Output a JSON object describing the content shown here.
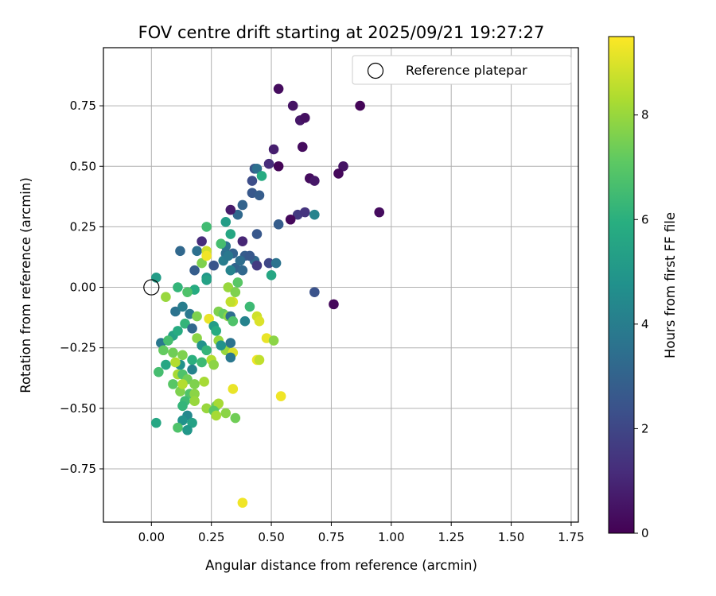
{
  "chart_data": {
    "type": "scatter",
    "title": "FOV centre drift starting at 2025/09/21 19:27:27",
    "xlabel": "Angular distance from reference (arcmin)",
    "ylabel": "Rotation from reference (arcmin)",
    "xlim": [
      -0.2,
      1.78
    ],
    "ylim": [
      -0.97,
      0.99
    ],
    "xticks": [
      0.0,
      0.25,
      0.5,
      0.75,
      1.0,
      1.25,
      1.5,
      1.75
    ],
    "xtick_labels": [
      "0.00",
      "0.25",
      "0.50",
      "0.75",
      "1.00",
      "1.25",
      "1.50",
      "1.75"
    ],
    "yticks": [
      -0.75,
      -0.5,
      -0.25,
      0.0,
      0.25,
      0.5,
      0.75
    ],
    "ytick_labels": [
      "−0.75",
      "−0.50",
      "−0.25",
      "0.00",
      "0.25",
      "0.50",
      "0.75"
    ],
    "grid": true,
    "legend": {
      "position": "top-right",
      "entries": [
        "Reference platepar"
      ]
    },
    "reference_point": {
      "x": 0.0,
      "y": 0.0,
      "label": "Reference platepar"
    },
    "colorbar": {
      "label": "Hours from first FF file",
      "range": [
        0,
        9.5
      ],
      "ticks": [
        0,
        2,
        4,
        6,
        8
      ],
      "tick_labels": [
        "0",
        "2",
        "4",
        "6",
        "8"
      ],
      "colormap": "viridis"
    },
    "points": [
      [
        0.53,
        0.82,
        0.3
      ],
      [
        0.59,
        0.75,
        0.5
      ],
      [
        0.87,
        0.75,
        0.1
      ],
      [
        0.62,
        0.69,
        0.6
      ],
      [
        0.64,
        0.7,
        0.4
      ],
      [
        0.51,
        0.57,
        0.8
      ],
      [
        0.63,
        0.58,
        0.3
      ],
      [
        0.49,
        0.51,
        1.2
      ],
      [
        0.53,
        0.5,
        0.1
      ],
      [
        0.8,
        0.5,
        0.5
      ],
      [
        0.78,
        0.47,
        0.2
      ],
      [
        0.66,
        0.45,
        0.3
      ],
      [
        0.68,
        0.44,
        0.6
      ],
      [
        0.43,
        0.49,
        2.5
      ],
      [
        0.44,
        0.49,
        3.5
      ],
      [
        0.46,
        0.46,
        5.8
      ],
      [
        0.42,
        0.44,
        2.2
      ],
      [
        0.42,
        0.39,
        2.6
      ],
      [
        0.45,
        0.38,
        2.8
      ],
      [
        0.38,
        0.34,
        3.0
      ],
      [
        0.36,
        0.3,
        3.2
      ],
      [
        0.33,
        0.32,
        0.7
      ],
      [
        0.61,
        0.3,
        1.6
      ],
      [
        0.64,
        0.31,
        1.4
      ],
      [
        0.58,
        0.28,
        0.2
      ],
      [
        0.68,
        0.3,
        4.2
      ],
      [
        0.95,
        0.31,
        0.3
      ],
      [
        0.53,
        0.26,
        2.8
      ],
      [
        0.31,
        0.27,
        5.2
      ],
      [
        0.23,
        0.25,
        6.5
      ],
      [
        0.33,
        0.22,
        5.6
      ],
      [
        0.44,
        0.22,
        2.6
      ],
      [
        0.21,
        0.19,
        1.2
      ],
      [
        0.38,
        0.19,
        1.0
      ],
      [
        0.12,
        0.15,
        3.2
      ],
      [
        0.19,
        0.15,
        3.5
      ],
      [
        0.23,
        0.15,
        8.8
      ],
      [
        0.31,
        0.14,
        3.4
      ],
      [
        0.34,
        0.14,
        3.0
      ],
      [
        0.39,
        0.13,
        2.8
      ],
      [
        0.43,
        0.11,
        3.2
      ],
      [
        0.49,
        0.1,
        2.0
      ],
      [
        0.52,
        0.1,
        3.6
      ],
      [
        0.3,
        0.11,
        4.0
      ],
      [
        0.26,
        0.09,
        2.5
      ],
      [
        0.35,
        0.08,
        3.0
      ],
      [
        0.33,
        0.07,
        4.2
      ],
      [
        0.18,
        0.07,
        2.8
      ],
      [
        0.38,
        0.07,
        3.2
      ],
      [
        0.5,
        0.05,
        5.6
      ],
      [
        0.44,
        0.09,
        1.6
      ],
      [
        0.23,
        0.04,
        5.0
      ],
      [
        0.23,
        0.03,
        5.4
      ],
      [
        0.21,
        0.1,
        7.6
      ],
      [
        0.23,
        0.13,
        9.3
      ],
      [
        0.02,
        0.04,
        5.2
      ],
      [
        0.11,
        0.0,
        6.2
      ],
      [
        0.18,
        -0.01,
        5.8
      ],
      [
        0.36,
        0.02,
        7.0
      ],
      [
        0.32,
        0.0,
        8.0
      ],
      [
        0.35,
        -0.02,
        7.6
      ],
      [
        0.06,
        -0.04,
        8.0
      ],
      [
        0.15,
        -0.02,
        6.8
      ],
      [
        0.34,
        -0.06,
        9.0
      ],
      [
        0.33,
        -0.06,
        8.6
      ],
      [
        0.41,
        -0.08,
        6.4
      ],
      [
        0.1,
        -0.1,
        3.6
      ],
      [
        0.13,
        -0.08,
        4.0
      ],
      [
        0.16,
        -0.11,
        3.8
      ],
      [
        0.19,
        -0.12,
        7.6
      ],
      [
        0.24,
        -0.13,
        9.2
      ],
      [
        0.28,
        -0.1,
        7.6
      ],
      [
        0.3,
        -0.11,
        7.2
      ],
      [
        0.32,
        -0.12,
        7.8
      ],
      [
        0.33,
        -0.12,
        3.4
      ],
      [
        0.34,
        -0.14,
        6.8
      ],
      [
        0.39,
        -0.14,
        4.2
      ],
      [
        0.44,
        -0.12,
        8.8
      ],
      [
        0.45,
        -0.14,
        9.0
      ],
      [
        0.48,
        -0.21,
        9.2
      ],
      [
        0.51,
        -0.22,
        7.8
      ],
      [
        0.04,
        -0.23,
        3.8
      ],
      [
        0.09,
        -0.2,
        5.4
      ],
      [
        0.11,
        -0.18,
        5.8
      ],
      [
        0.14,
        -0.15,
        6.2
      ],
      [
        0.17,
        -0.17,
        3.2
      ],
      [
        0.19,
        -0.21,
        7.8
      ],
      [
        0.21,
        -0.24,
        4.8
      ],
      [
        0.26,
        -0.16,
        5.2
      ],
      [
        0.27,
        -0.18,
        5.8
      ],
      [
        0.28,
        -0.22,
        8.0
      ],
      [
        0.31,
        -0.26,
        8.0
      ],
      [
        0.33,
        -0.23,
        3.6
      ],
      [
        0.34,
        -0.27,
        9.0
      ],
      [
        0.33,
        -0.29,
        3.8
      ],
      [
        0.05,
        -0.26,
        7.2
      ],
      [
        0.07,
        -0.22,
        6.6
      ],
      [
        0.09,
        -0.27,
        7.4
      ],
      [
        0.12,
        -0.32,
        4.8
      ],
      [
        0.13,
        -0.28,
        7.6
      ],
      [
        0.17,
        -0.3,
        6.0
      ],
      [
        0.17,
        -0.34,
        4.2
      ],
      [
        0.21,
        -0.31,
        6.4
      ],
      [
        0.23,
        -0.26,
        6.2
      ],
      [
        0.25,
        -0.3,
        8.4
      ],
      [
        0.26,
        -0.32,
        7.8
      ],
      [
        0.29,
        -0.24,
        4.8
      ],
      [
        0.44,
        -0.3,
        9.3
      ],
      [
        0.45,
        -0.3,
        8.6
      ],
      [
        0.03,
        -0.35,
        6.6
      ],
      [
        0.06,
        -0.32,
        5.6
      ],
      [
        0.1,
        -0.31,
        8.4
      ],
      [
        0.11,
        -0.36,
        8.2
      ],
      [
        0.13,
        -0.36,
        6.8
      ],
      [
        0.15,
        -0.38,
        7.4
      ],
      [
        0.18,
        -0.4,
        7.6
      ],
      [
        0.22,
        -0.39,
        8.2
      ],
      [
        0.09,
        -0.4,
        7.0
      ],
      [
        0.12,
        -0.43,
        7.6
      ],
      [
        0.13,
        -0.4,
        8.4
      ],
      [
        0.16,
        -0.44,
        6.8
      ],
      [
        0.18,
        -0.44,
        7.8
      ],
      [
        0.14,
        -0.47,
        6.4
      ],
      [
        0.18,
        -0.47,
        8.0
      ],
      [
        0.13,
        -0.49,
        6.2
      ],
      [
        0.23,
        -0.5,
        8.0
      ],
      [
        0.27,
        -0.49,
        7.4
      ],
      [
        0.28,
        -0.48,
        8.2
      ],
      [
        0.26,
        -0.51,
        7.0
      ],
      [
        0.27,
        -0.53,
        8.2
      ],
      [
        0.31,
        -0.52,
        7.8
      ],
      [
        0.35,
        -0.54,
        7.4
      ],
      [
        0.15,
        -0.53,
        4.4
      ],
      [
        0.13,
        -0.55,
        4.8
      ],
      [
        0.17,
        -0.56,
        5.4
      ],
      [
        0.11,
        -0.58,
        6.8
      ],
      [
        0.15,
        -0.59,
        5.0
      ],
      [
        0.02,
        -0.56,
        5.6
      ],
      [
        0.34,
        -0.42,
        9.2
      ],
      [
        0.54,
        -0.45,
        9.3
      ],
      [
        0.38,
        -0.89,
        9.3
      ],
      [
        0.76,
        -0.07,
        0.2
      ],
      [
        0.68,
        -0.02,
        2.4
      ],
      [
        0.32,
        0.13,
        3.8
      ],
      [
        0.31,
        0.17,
        3.6
      ],
      [
        0.37,
        0.11,
        3.4
      ],
      [
        0.41,
        0.13,
        2.6
      ],
      [
        0.29,
        0.18,
        6.6
      ]
    ]
  }
}
